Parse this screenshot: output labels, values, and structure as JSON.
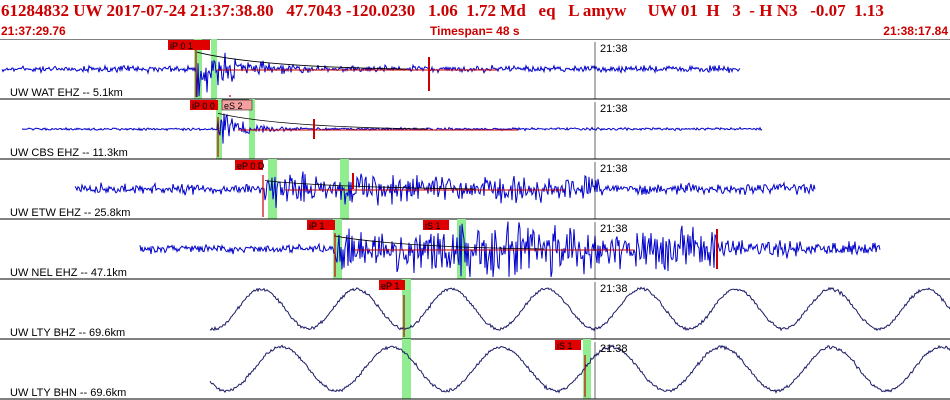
{
  "header": {
    "event_line": "61284832 UW 2017-07-24 21:37:38.80   47.7043 -120.0230   1.06  1.72 Md   eq   L amyw     UW 01  H   3  - H N3   -0.07  1.13",
    "start_time": "21:37:29.76",
    "timespan": "Timespan=  48 s",
    "end_time": "21:38:17.84"
  },
  "colors": {
    "header_text": "#cc0000",
    "trace_short": "#0000cc",
    "trace_long": "#1a1a66",
    "pick_box": "#e00000",
    "pick_line": "#cc0000",
    "pick_window": "#90ee90",
    "weak_pick_box": "#f4a0a0"
  },
  "panels": [
    {
      "station_label": "UW WAT EHZ -- 5.1km",
      "time_tick": "21:38",
      "picks": [
        {
          "label": "iP 0 1"
        }
      ],
      "trace_type": "short"
    },
    {
      "station_label": "UW CBS EHZ -- 11.3km",
      "time_tick": "21:38",
      "picks": [
        {
          "label": "iP 0 0"
        },
        {
          "label": "eS 2"
        }
      ],
      "trace_type": "short"
    },
    {
      "station_label": "UW ETW EHZ -- 25.8km",
      "time_tick": "21:38",
      "picks": [
        {
          "label": "eP 0 D"
        }
      ],
      "trace_type": "short"
    },
    {
      "station_label": "UW NEL EHZ -- 47.1km",
      "time_tick": "21:38",
      "picks": [
        {
          "label": "iP 1"
        },
        {
          "label": "iS 1"
        }
      ],
      "trace_type": "short"
    },
    {
      "station_label": "UW LTY BHZ -- 69.6km",
      "time_tick": "21:38",
      "picks": [
        {
          "label": "eP 1"
        }
      ],
      "trace_type": "long"
    },
    {
      "station_label": "UW LTY BHN -- 69.6km",
      "time_tick": "21:38",
      "picks": [
        {
          "label": "iS 1"
        }
      ],
      "trace_type": "long"
    }
  ]
}
